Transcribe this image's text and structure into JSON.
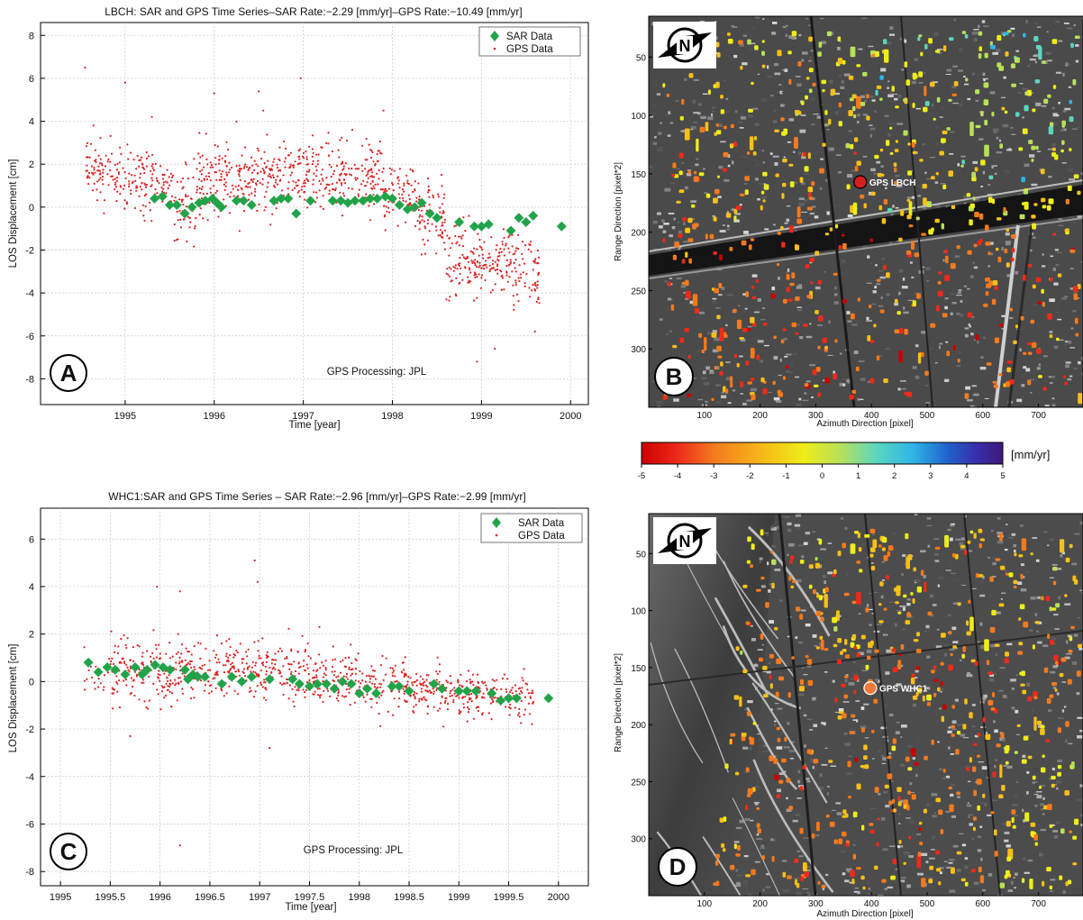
{
  "chart_data": [
    {
      "type": "scatter",
      "panel_letter": "A",
      "title": "LBCH: SAR and GPS Time Series–SAR Rate:−2.29 [mm/yr]–GPS Rate:−10.49 [mm/yr]",
      "xlabel": "Time [year]",
      "ylabel": "LOS Displacement [cm]",
      "xlim": [
        1994.05,
        2000.2
      ],
      "ylim": [
        -9.2,
        8.6
      ],
      "xticks": [
        1995,
        1996,
        1997,
        1998,
        1999,
        2000
      ],
      "xtick_labels": [
        "1995",
        "1996",
        "1997",
        "1998",
        "1999",
        "2000"
      ],
      "yticks": [
        -8,
        -6,
        -4,
        -2,
        0,
        2,
        4,
        6,
        8
      ],
      "ytick_labels": [
        "-8",
        "-6",
        "-4",
        "-2",
        "0",
        "2",
        "4",
        "6",
        "8"
      ],
      "grid": true,
      "legend_position": "top-right",
      "annotation": "GPS Processing: JPL",
      "series": [
        {
          "name": "SAR Data",
          "marker": "diamond",
          "color": "#22a34a",
          "points": [
            [
              1995.33,
              0.4
            ],
            [
              1995.42,
              0.5
            ],
            [
              1995.5,
              0.1
            ],
            [
              1995.58,
              0.1
            ],
            [
              1995.67,
              -0.3
            ],
            [
              1995.75,
              0.0
            ],
            [
              1995.83,
              0.2
            ],
            [
              1995.9,
              0.3
            ],
            [
              1995.98,
              0.4
            ],
            [
              1996.03,
              0.2
            ],
            [
              1996.08,
              0.0
            ],
            [
              1996.25,
              0.3
            ],
            [
              1996.33,
              0.3
            ],
            [
              1996.42,
              0.1
            ],
            [
              1996.67,
              0.3
            ],
            [
              1996.75,
              0.4
            ],
            [
              1996.83,
              0.4
            ],
            [
              1996.92,
              -0.3
            ],
            [
              1997.08,
              0.3
            ],
            [
              1997.33,
              0.3
            ],
            [
              1997.42,
              0.3
            ],
            [
              1997.5,
              0.2
            ],
            [
              1997.58,
              0.3
            ],
            [
              1997.67,
              0.3
            ],
            [
              1997.75,
              0.4
            ],
            [
              1997.83,
              0.4
            ],
            [
              1997.92,
              0.5
            ],
            [
              1998.0,
              0.4
            ],
            [
              1998.08,
              0.1
            ],
            [
              1998.17,
              -0.1
            ],
            [
              1998.25,
              0.0
            ],
            [
              1998.33,
              0.2
            ],
            [
              1998.42,
              -0.3
            ],
            [
              1998.5,
              -0.5
            ],
            [
              1998.75,
              -0.7
            ],
            [
              1998.92,
              -0.9
            ],
            [
              1999.0,
              -0.9
            ],
            [
              1999.08,
              -0.8
            ],
            [
              1999.33,
              -1.1
            ],
            [
              1999.42,
              -0.5
            ],
            [
              1999.5,
              -0.7
            ],
            [
              1999.58,
              -0.4
            ],
            [
              1999.9,
              -0.9
            ]
          ]
        },
        {
          "name": "GPS Data",
          "marker": "dot",
          "color": "#dd2222",
          "segments": [
            {
              "t0": 1994.55,
              "t1": 1994.72,
              "mean": 1.7,
              "spread": 0.8,
              "n": 40
            },
            {
              "t0": 1994.72,
              "t1": 1995.1,
              "mean": 1.3,
              "spread": 0.9,
              "n": 70
            },
            {
              "t0": 1995.1,
              "t1": 1995.55,
              "mean": 1.2,
              "spread": 0.9,
              "n": 90
            },
            {
              "t0": 1995.55,
              "t1": 1995.8,
              "mean": 0.0,
              "spread": 1.2,
              "n": 50
            },
            {
              "t0": 1995.8,
              "t1": 1996.3,
              "mean": 1.3,
              "spread": 1.2,
              "n": 120
            },
            {
              "t0": 1996.3,
              "t1": 1996.8,
              "mean": 1.4,
              "spread": 1.0,
              "n": 110
            },
            {
              "t0": 1996.8,
              "t1": 1997.3,
              "mean": 1.6,
              "spread": 1.0,
              "n": 110
            },
            {
              "t0": 1997.3,
              "t1": 1997.9,
              "mean": 1.4,
              "spread": 0.9,
              "n": 130
            },
            {
              "t0": 1997.9,
              "t1": 1998.3,
              "mean": 0.7,
              "spread": 0.9,
              "n": 80
            },
            {
              "t0": 1998.3,
              "t1": 1998.6,
              "mean": -0.5,
              "spread": 1.0,
              "n": 70
            },
            {
              "t0": 1998.6,
              "t1": 1999.0,
              "mean": -2.5,
              "spread": 1.1,
              "n": 100
            },
            {
              "t0": 1999.0,
              "t1": 1999.6,
              "mean": -2.8,
              "spread": 1.0,
              "n": 130
            },
            {
              "t0": 1999.6,
              "t1": 1999.65,
              "mean": -3.2,
              "spread": 1.0,
              "n": 20
            }
          ],
          "outliers": [
            [
              1994.55,
              6.5
            ],
            [
              1995.0,
              5.8
            ],
            [
              1996.0,
              5.3
            ],
            [
              1996.5,
              5.4
            ],
            [
              1996.97,
              6.0
            ],
            [
              1997.9,
              4.5
            ],
            [
              1998.95,
              -7.2
            ],
            [
              1999.15,
              -6.6
            ],
            [
              1999.6,
              -5.8
            ],
            [
              1995.3,
              4.2
            ],
            [
              1996.55,
              4.5
            ],
            [
              1997.55,
              3.6
            ]
          ]
        }
      ]
    },
    {
      "type": "scatter",
      "panel_letter": "C",
      "title": "WHC1:SAR and GPS Time Series – SAR Rate:−2.96 [mm/yr]–GPS Rate:−2.99 [mm/yr]",
      "xlabel": "Time [year]",
      "ylabel": "LOS Displacement [cm]",
      "xlim": [
        1994.8,
        2000.3
      ],
      "ylim": [
        -8.6,
        7.3
      ],
      "xticks": [
        1995,
        1995.5,
        1996,
        1996.5,
        1997,
        1997.5,
        1998,
        1998.5,
        1999,
        1999.5,
        2000
      ],
      "xtick_labels": [
        "1995",
        "1995.5",
        "1996",
        "1996.5",
        "1997",
        "1997.5",
        "1998",
        "1998.5",
        "1999",
        "1999.5",
        "2000"
      ],
      "yticks": [
        -8,
        -6,
        -4,
        -2,
        0,
        2,
        4,
        6
      ],
      "ytick_labels": [
        "-8",
        "-6",
        "-4",
        "-2",
        "0",
        "2",
        "4",
        "6"
      ],
      "grid": true,
      "legend_position": "top-right",
      "annotation": "GPS Processing: JPL",
      "series": [
        {
          "name": "SAR Data",
          "marker": "diamond",
          "color": "#22a34a",
          "points": [
            [
              1995.28,
              0.8
            ],
            [
              1995.38,
              0.4
            ],
            [
              1995.47,
              0.6
            ],
            [
              1995.55,
              0.5
            ],
            [
              1995.65,
              0.3
            ],
            [
              1995.75,
              0.6
            ],
            [
              1995.82,
              0.3
            ],
            [
              1995.87,
              0.5
            ],
            [
              1995.95,
              0.7
            ],
            [
              1996.03,
              0.6
            ],
            [
              1996.1,
              0.5
            ],
            [
              1996.25,
              0.5
            ],
            [
              1996.28,
              0.1
            ],
            [
              1996.33,
              0.3
            ],
            [
              1996.38,
              0.2
            ],
            [
              1996.45,
              0.2
            ],
            [
              1996.62,
              -0.1
            ],
            [
              1996.72,
              0.2
            ],
            [
              1996.82,
              0.0
            ],
            [
              1996.92,
              0.2
            ],
            [
              1997.1,
              0.1
            ],
            [
              1997.33,
              0.1
            ],
            [
              1997.4,
              -0.1
            ],
            [
              1997.5,
              -0.2
            ],
            [
              1997.58,
              -0.1
            ],
            [
              1997.67,
              -0.1
            ],
            [
              1997.75,
              -0.3
            ],
            [
              1997.83,
              0.0
            ],
            [
              1997.92,
              -0.1
            ],
            [
              1998.0,
              -0.5
            ],
            [
              1998.08,
              -0.3
            ],
            [
              1998.17,
              -0.5
            ],
            [
              1998.33,
              -0.2
            ],
            [
              1998.4,
              -0.2
            ],
            [
              1998.5,
              -0.4
            ],
            [
              1998.75,
              -0.1
            ],
            [
              1998.83,
              -0.3
            ],
            [
              1999.0,
              -0.4
            ],
            [
              1999.08,
              -0.4
            ],
            [
              1999.17,
              -0.4
            ],
            [
              1999.33,
              -0.5
            ],
            [
              1999.42,
              -0.8
            ],
            [
              1999.5,
              -0.7
            ],
            [
              1999.58,
              -0.7
            ],
            [
              1999.9,
              -0.7
            ]
          ]
        },
        {
          "name": "GPS Data",
          "marker": "dot",
          "color": "#dd2222",
          "segments": [
            {
              "t0": 1995.2,
              "t1": 1995.5,
              "mean": 0.3,
              "spread": 0.5,
              "n": 20
            },
            {
              "t0": 1995.5,
              "t1": 1996.0,
              "mean": 0.5,
              "spread": 1.0,
              "n": 110
            },
            {
              "t0": 1996.0,
              "t1": 1996.5,
              "mean": 0.4,
              "spread": 0.9,
              "n": 110
            },
            {
              "t0": 1996.5,
              "t1": 1997.0,
              "mean": 0.5,
              "spread": 0.8,
              "n": 110
            },
            {
              "t0": 1997.0,
              "t1": 1997.5,
              "mean": 0.4,
              "spread": 0.8,
              "n": 110
            },
            {
              "t0": 1997.5,
              "t1": 1998.0,
              "mean": 0.1,
              "spread": 0.8,
              "n": 110
            },
            {
              "t0": 1998.0,
              "t1": 1998.5,
              "mean": -0.3,
              "spread": 0.7,
              "n": 110
            },
            {
              "t0": 1998.5,
              "t1": 1999.0,
              "mean": -0.4,
              "spread": 0.6,
              "n": 110
            },
            {
              "t0": 1999.0,
              "t1": 1999.5,
              "mean": -0.5,
              "spread": 0.6,
              "n": 110
            },
            {
              "t0": 1999.5,
              "t1": 1999.75,
              "mean": -0.6,
              "spread": 0.6,
              "n": 50
            }
          ],
          "outliers": [
            [
              1996.2,
              -6.9
            ],
            [
              1996.95,
              5.1
            ],
            [
              1996.98,
              4.2
            ],
            [
              1995.97,
              4.0
            ],
            [
              1996.2,
              3.8
            ],
            [
              1995.7,
              -2.3
            ],
            [
              1997.1,
              -2.8
            ],
            [
              1997.6,
              2.3
            ]
          ]
        }
      ]
    },
    {
      "type": "heatmap",
      "panel_letter": "B",
      "xlabel": "Azimuth Direction [pixel]",
      "ylabel": "Range Direction [pixel*2]",
      "xlim": [
        0,
        780
      ],
      "ylim": [
        350,
        15
      ],
      "xticks": [
        100,
        200,
        300,
        400,
        500,
        600,
        700
      ],
      "yticks": [
        50,
        100,
        150,
        200,
        250,
        300
      ],
      "north_arrow_label": "N",
      "gps_station": {
        "label": "GPS LBCH",
        "x": 380,
        "y": 157,
        "color": "#d61f1f"
      },
      "scatter_density": "urban grid with persistent scatterers colored by LOS rate"
    },
    {
      "type": "heatmap",
      "panel_letter": "D",
      "xlabel": "Azimuth Direction [pixel]",
      "ylabel": "Range Direction [pixel*2]",
      "xlim": [
        0,
        780
      ],
      "ylim": [
        350,
        15
      ],
      "xticks": [
        100,
        200,
        300,
        400,
        500,
        600,
        700
      ],
      "yticks": [
        50,
        100,
        150,
        200,
        250,
        300
      ],
      "north_arrow_label": "N",
      "gps_station": {
        "label": "GPS WHC1",
        "x": 398,
        "y": 168,
        "color": "#f07a3a"
      },
      "scatter_density": "urban grid with hills on the left, scatterers colored by LOS rate"
    }
  ],
  "colorbar": {
    "unit": "[mm/yr]",
    "min": -5,
    "max": 5,
    "ticks": [
      -5,
      -4,
      -3,
      -2,
      -1,
      0,
      1,
      2,
      3,
      4,
      5
    ],
    "tick_labels": [
      "-5",
      "-4",
      "-3",
      "-2",
      "-1",
      "0",
      "1",
      "2",
      "3",
      "4",
      "5"
    ],
    "stops": [
      "#cc0000",
      "#ee2a1a",
      "#f47a1e",
      "#f6c018",
      "#eded19",
      "#b8e05a",
      "#5cd6c0",
      "#2fb6e6",
      "#2060cc",
      "#3a2ca8",
      "#3b1a7a"
    ]
  }
}
